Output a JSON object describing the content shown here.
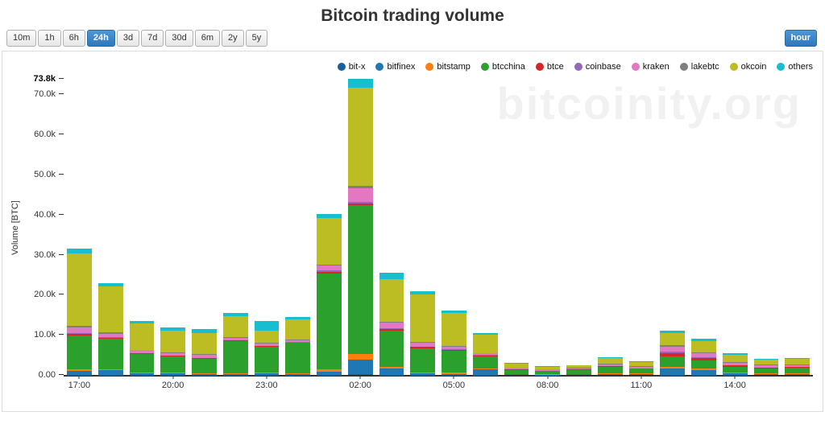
{
  "header": {
    "title": "Bitcoin trading volume"
  },
  "controls": {
    "time_ranges": [
      "10m",
      "1h",
      "6h",
      "24h",
      "3d",
      "7d",
      "30d",
      "6m",
      "2y",
      "5y"
    ],
    "selected_range": "24h",
    "interval_button": "hour"
  },
  "chart": {
    "watermark": "bitcoinity.org",
    "y_axis_label": "Volume [BTC]"
  },
  "chart_data": {
    "type": "bar",
    "stacked": true,
    "title": "Bitcoin trading volume",
    "xlabel": "",
    "ylabel": "Volume [BTC]",
    "y_max": 73800,
    "ylim": [
      0,
      73800
    ],
    "grid": false,
    "legend_position": "top-right",
    "y_ticks": [
      {
        "value": 0,
        "label": "0.00"
      },
      {
        "value": 10000,
        "label": "10.0k"
      },
      {
        "value": 20000,
        "label": "20.0k"
      },
      {
        "value": 30000,
        "label": "30.0k"
      },
      {
        "value": 40000,
        "label": "40.0k"
      },
      {
        "value": 50000,
        "label": "50.0k"
      },
      {
        "value": 60000,
        "label": "60.0k"
      },
      {
        "value": 70000,
        "label": "70.0k"
      },
      {
        "value": 73800,
        "label": "73.8k",
        "bold": true
      }
    ],
    "categories": [
      "17:00",
      "18:00",
      "19:00",
      "20:00",
      "21:00",
      "22:00",
      "23:00",
      "00:00",
      "01:00",
      "02:00",
      "03:00",
      "04:00",
      "05:00",
      "06:00",
      "07:00",
      "08:00",
      "09:00",
      "10:00",
      "11:00",
      "12:00",
      "13:00",
      "14:00",
      "15:00",
      "16:00"
    ],
    "x_tick_indices": [
      0,
      3,
      6,
      9,
      12,
      15,
      18,
      21
    ],
    "series": [
      {
        "name": "bit-x",
        "color": "#17619c",
        "values": [
          50,
          50,
          20,
          20,
          20,
          20,
          20,
          20,
          100,
          300,
          50,
          20,
          20,
          20,
          10,
          10,
          10,
          10,
          10,
          50,
          50,
          20,
          10,
          10
        ]
      },
      {
        "name": "bitfinex",
        "color": "#1f77b4",
        "values": [
          1000,
          1200,
          500,
          400,
          300,
          300,
          400,
          300,
          800,
          3500,
          1500,
          400,
          300,
          1500,
          200,
          100,
          150,
          300,
          200,
          1500,
          1200,
          400,
          300,
          300
        ]
      },
      {
        "name": "bitstamp",
        "color": "#ff7f0e",
        "values": [
          400,
          300,
          200,
          200,
          200,
          200,
          200,
          200,
          500,
          1500,
          500,
          300,
          300,
          200,
          100,
          100,
          100,
          200,
          150,
          600,
          400,
          200,
          150,
          150
        ]
      },
      {
        "name": "btcchina",
        "color": "#2ca02c",
        "values": [
          8500,
          7500,
          4500,
          4000,
          3500,
          8000,
          6500,
          7500,
          24000,
          37000,
          9000,
          6000,
          5500,
          3000,
          1000,
          800,
          1000,
          1500,
          1200,
          2500,
          2000,
          1500,
          1200,
          1300
        ]
      },
      {
        "name": "btce",
        "color": "#d62728",
        "values": [
          300,
          250,
          150,
          150,
          150,
          150,
          150,
          150,
          400,
          500,
          400,
          250,
          200,
          150,
          100,
          80,
          100,
          150,
          120,
          900,
          600,
          250,
          200,
          200
        ]
      },
      {
        "name": "coinbase",
        "color": "#9467bd",
        "values": [
          200,
          150,
          100,
          100,
          100,
          100,
          100,
          100,
          250,
          300,
          250,
          150,
          120,
          100,
          50,
          40,
          50,
          80,
          60,
          300,
          200,
          100,
          80,
          80
        ]
      },
      {
        "name": "kraken",
        "color": "#e377c2",
        "values": [
          1500,
          900,
          700,
          600,
          800,
          500,
          500,
          500,
          1200,
          3500,
          1300,
          1000,
          600,
          400,
          300,
          250,
          300,
          500,
          400,
          1200,
          1000,
          600,
          500,
          500
        ]
      },
      {
        "name": "lakebtc",
        "color": "#7f7f7f",
        "values": [
          300,
          250,
          200,
          200,
          200,
          200,
          200,
          200,
          350,
          500,
          350,
          250,
          200,
          150,
          100,
          80,
          100,
          150,
          120,
          350,
          300,
          200,
          150,
          150
        ]
      },
      {
        "name": "okcoin",
        "color": "#bcbd22",
        "values": [
          18000,
          11500,
          6500,
          5500,
          5300,
          5200,
          3000,
          5000,
          11500,
          24500,
          10500,
          11800,
          8200,
          4500,
          1000,
          600,
          600,
          1300,
          1000,
          3000,
          2800,
          1800,
          1200,
          1300
        ]
      },
      {
        "name": "others",
        "color": "#17becf",
        "values": [
          1200,
          900,
          600,
          800,
          900,
          800,
          2400,
          500,
          1000,
          2200,
          1600,
          800,
          600,
          500,
          150,
          140,
          100,
          300,
          250,
          600,
          450,
          400,
          200,
          200
        ]
      }
    ]
  }
}
